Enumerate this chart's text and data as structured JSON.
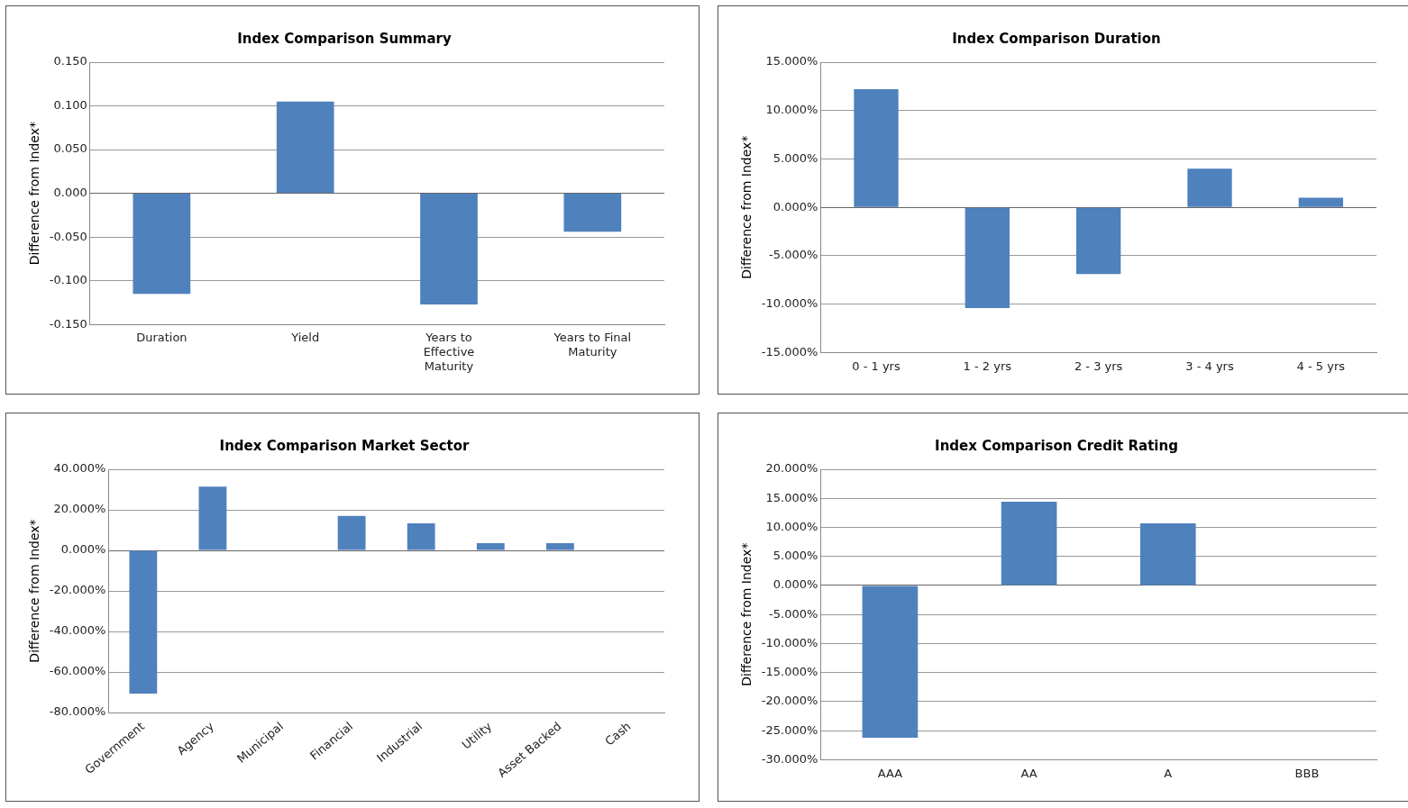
{
  "chart_data": [
    {
      "type": "bar",
      "title": "Index Comparison Summary",
      "ylabel": "Difference from Index*",
      "categories": [
        "Duration",
        "Yield",
        "Years to Effective Maturity",
        "Years to Final Maturity"
      ],
      "values": [
        -0.115,
        0.105,
        -0.127,
        -0.044
      ],
      "color": "#4f81bd",
      "ylim": [
        -0.15,
        0.15
      ],
      "yticks": [
        {
          "value": -0.15,
          "label": "-0.150"
        },
        {
          "value": -0.1,
          "label": "-0.100"
        },
        {
          "value": -0.05,
          "label": "-0.050"
        },
        {
          "value": 0,
          "label": "0.000"
        },
        {
          "value": 0.05,
          "label": "0.050"
        },
        {
          "value": 0.1,
          "label": "0.100"
        },
        {
          "value": 0.15,
          "label": "0.150"
        }
      ],
      "grid": "y"
    },
    {
      "type": "bar",
      "title": "Index Comparison Duration",
      "ylabel": "Difference from Index*",
      "categories": [
        "0 - 1 yrs",
        "1 - 2 yrs",
        "2 - 3 yrs",
        "3 - 4 yrs",
        "4 - 5 yrs"
      ],
      "values": [
        12.2,
        -10.4,
        -6.9,
        4.0,
        1.0
      ],
      "color": "#4f81bd",
      "ylim": [
        -15,
        15
      ],
      "yticks": [
        {
          "value": -15,
          "label": "-15.000%"
        },
        {
          "value": -10,
          "label": "-10.000%"
        },
        {
          "value": -5,
          "label": "-5.000%"
        },
        {
          "value": 0,
          "label": "0.000%"
        },
        {
          "value": 5,
          "label": "5.000%"
        },
        {
          "value": 10,
          "label": "10.000%"
        },
        {
          "value": 15,
          "label": "15.000%"
        }
      ],
      "grid": "y"
    },
    {
      "type": "bar",
      "title": "Index Comparison Market Sector",
      "ylabel": "Difference from Index*",
      "categories": [
        "Government",
        "Agency",
        "Municipal",
        "Financial",
        "Industrial",
        "Utility",
        "Asset Backed",
        "Cash"
      ],
      "values": [
        -70.6,
        31.4,
        0,
        17,
        13.4,
        3.6,
        3.6,
        0
      ],
      "color": "#4f81bd",
      "ylim": [
        -80,
        40
      ],
      "yticks": [
        {
          "value": -80,
          "label": "-80.000%"
        },
        {
          "value": -60,
          "label": "-60.000%"
        },
        {
          "value": -40,
          "label": "-40.000%"
        },
        {
          "value": -20,
          "label": "-20.000%"
        },
        {
          "value": 0,
          "label": "0.000%"
        },
        {
          "value": 20,
          "label": "20.000%"
        },
        {
          "value": 40,
          "label": "40.000%"
        }
      ],
      "grid": "y"
    },
    {
      "type": "bar",
      "title": "Index Comparison Credit Rating",
      "ylabel": "Difference from Index*",
      "categories": [
        "AAA",
        "AA",
        "A",
        "BBB"
      ],
      "values": [
        -26.2,
        14.4,
        10.7,
        0
      ],
      "color": "#4f81bd",
      "ylim": [
        -30,
        20
      ],
      "yticks": [
        {
          "value": -30,
          "label": "-30.000%"
        },
        {
          "value": -25,
          "label": "-25.000%"
        },
        {
          "value": -20,
          "label": "-20.000%"
        },
        {
          "value": -15,
          "label": "-15.000%"
        },
        {
          "value": -10,
          "label": "-10.000%"
        },
        {
          "value": -5,
          "label": "-5.000%"
        },
        {
          "value": 0,
          "label": "0.000%"
        },
        {
          "value": 5,
          "label": "5.000%"
        },
        {
          "value": 10,
          "label": "10.000%"
        },
        {
          "value": 15,
          "label": "15.000%"
        },
        {
          "value": 20,
          "label": "20.000%"
        }
      ],
      "grid": "y"
    }
  ]
}
